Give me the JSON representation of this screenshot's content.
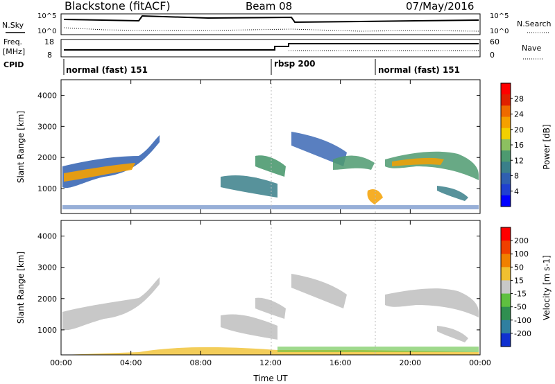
{
  "header": {
    "station": "Blackstone (fitACF)",
    "beam": "Beam 08",
    "date": "07/May/2016"
  },
  "top_panels": {
    "nsky_label": "N.Sky",
    "nsearch_label": "N.Search",
    "log_ticks": [
      "10^5",
      "10^0"
    ],
    "freq_label": "Freq.",
    "freq_unit": "[MHz]",
    "freq_ticks": [
      "18",
      "8"
    ],
    "nave_label": "Nave",
    "nave_ticks": [
      "60",
      "0"
    ],
    "cpid_label": "CPID",
    "cpid_segments": [
      "normal (fast) 151",
      "rbsp 200",
      "normal (fast) 151"
    ]
  },
  "chart_data": [
    {
      "type": "heatmap",
      "name": "power",
      "ylabel": "Slant Range [km]",
      "xlabel": "Time UT",
      "x_ticks": [
        "00:00",
        "04:00",
        "08:00",
        "12:00",
        "16:00",
        "20:00",
        "00:00"
      ],
      "y_ticks": [
        1000,
        2000,
        3000,
        4000
      ],
      "ylim": [
        200,
        4500
      ],
      "colorbar": {
        "label": "Power [dB]",
        "ticks": [
          28,
          24,
          20,
          16,
          12,
          8,
          4
        ],
        "colors": [
          "#0000ff",
          "#2040d0",
          "#2f5fb0",
          "#3a7f8a",
          "#4d9a70",
          "#8cc060",
          "#f2d000",
          "#f5a000",
          "#ef6a00",
          "#e02000",
          "#ff0000"
        ]
      }
    },
    {
      "type": "heatmap",
      "name": "velocity",
      "ylabel": "Slant Range [km]",
      "xlabel": "Time UT",
      "x_ticks": [
        "00:00",
        "04:00",
        "08:00",
        "12:00",
        "16:00",
        "20:00",
        "00:00"
      ],
      "y_ticks": [
        1000,
        2000,
        3000,
        4000
      ],
      "ylim": [
        200,
        4500
      ],
      "colorbar": {
        "label": "Velocity [m s-1]",
        "ticks": [
          200,
          100,
          50,
          15,
          -15,
          -50,
          -100,
          -200
        ],
        "colors": [
          "#1030d0",
          "#2f7fa0",
          "#2f8f50",
          "#5fc040",
          "#c8c8c8",
          "#f0c030",
          "#f08000",
          "#f04000",
          "#ff0000"
        ]
      }
    }
  ]
}
